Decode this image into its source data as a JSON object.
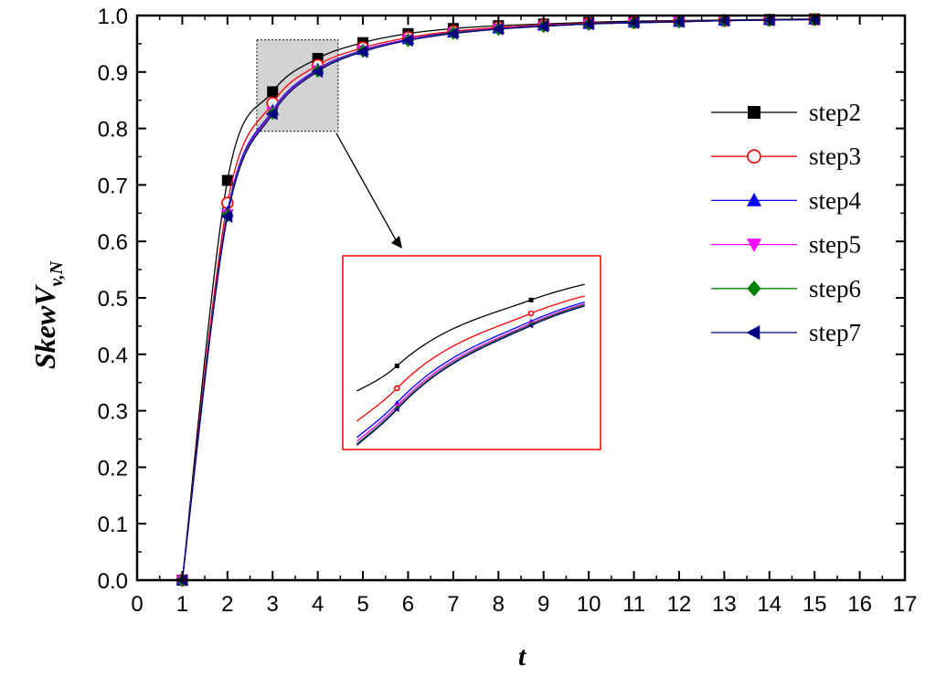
{
  "chart_data": {
    "type": "line",
    "xlabel": "t",
    "ylabel": {
      "main": "Skew",
      "v": "V",
      "sub": "v,N"
    },
    "xlim": [
      0,
      17
    ],
    "ylim": [
      0.0,
      1.0
    ],
    "xticks": [
      "0",
      "1",
      "2",
      "3",
      "4",
      "5",
      "6",
      "7",
      "8",
      "9",
      "10",
      "11",
      "12",
      "13",
      "14",
      "15",
      "16",
      "17"
    ],
    "yticks": [
      "0.0",
      "0.1",
      "0.2",
      "0.3",
      "0.4",
      "0.5",
      "0.6",
      "0.7",
      "0.8",
      "0.9",
      "1.0"
    ],
    "legend_position": "right",
    "x": [
      1,
      2,
      3,
      4,
      5,
      6,
      7,
      8,
      9,
      10,
      11,
      12,
      13,
      14,
      15
    ],
    "series": [
      {
        "name": "step2",
        "color": "#000000",
        "marker": "square-filled",
        "values": [
          0.0,
          0.708,
          0.865,
          0.924,
          0.952,
          0.968,
          0.977,
          0.982,
          0.985,
          0.988,
          0.99,
          0.991,
          0.992,
          0.993,
          0.994
        ]
      },
      {
        "name": "step3",
        "color": "#ff0000",
        "marker": "circle-open",
        "values": [
          0.0,
          0.668,
          0.845,
          0.912,
          0.943,
          0.961,
          0.972,
          0.979,
          0.983,
          0.986,
          0.988,
          0.99,
          0.991,
          0.992,
          0.993
        ]
      },
      {
        "name": "step4",
        "color": "#0000ff",
        "marker": "triangle-up",
        "values": [
          0.0,
          0.652,
          0.832,
          0.905,
          0.939,
          0.958,
          0.97,
          0.977,
          0.982,
          0.985,
          0.988,
          0.989,
          0.991,
          0.992,
          0.993
        ]
      },
      {
        "name": "step5",
        "color": "#ff00ff",
        "marker": "triangle-down",
        "values": [
          0.0,
          0.648,
          0.829,
          0.903,
          0.938,
          0.957,
          0.969,
          0.977,
          0.981,
          0.985,
          0.987,
          0.989,
          0.991,
          0.992,
          0.993
        ]
      },
      {
        "name": "step6",
        "color": "#008000",
        "marker": "diamond",
        "values": [
          0.0,
          0.646,
          0.827,
          0.902,
          0.937,
          0.956,
          0.969,
          0.976,
          0.981,
          0.985,
          0.987,
          0.989,
          0.991,
          0.992,
          0.993
        ]
      },
      {
        "name": "step7",
        "color": "#000080",
        "marker": "triangle-left",
        "values": [
          0.0,
          0.644,
          0.826,
          0.901,
          0.936,
          0.956,
          0.968,
          0.976,
          0.981,
          0.985,
          0.987,
          0.989,
          0.991,
          0.992,
          0.993
        ]
      }
    ],
    "zoom_region": {
      "x": [
        2.65,
        4.45
      ],
      "y": [
        0.795,
        0.957
      ]
    }
  }
}
